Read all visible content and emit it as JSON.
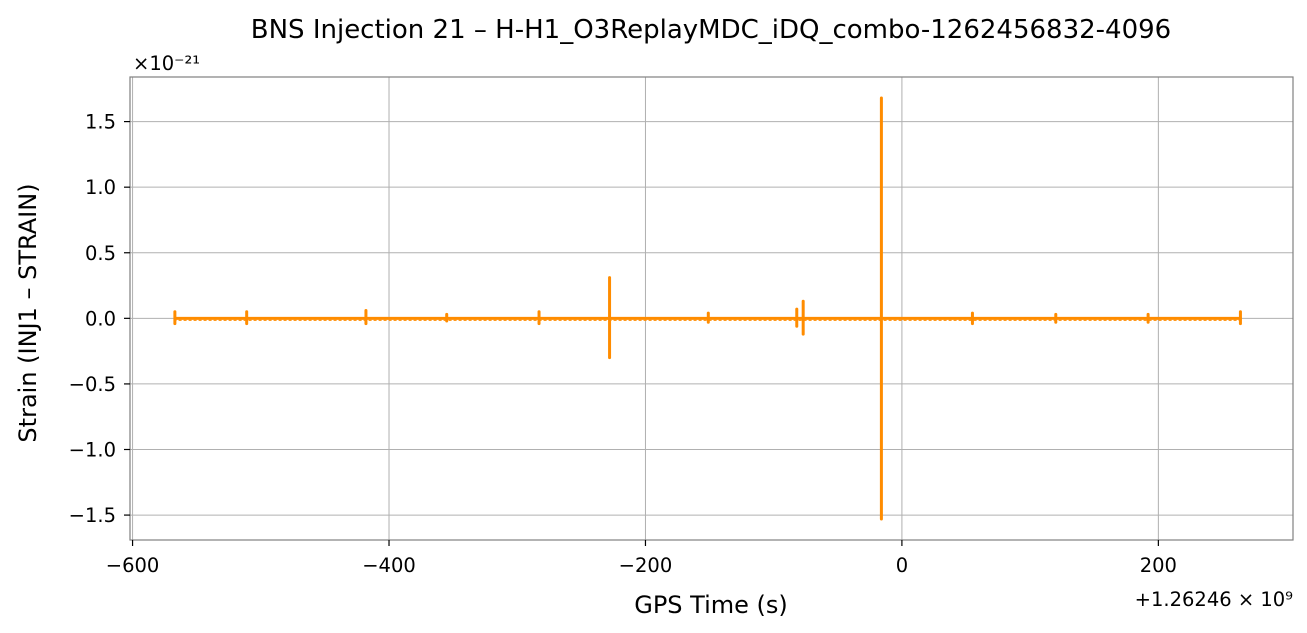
{
  "chart_data": {
    "type": "line",
    "title": "BNS Injection 21 – H-H1_O3ReplayMDC_iDQ_combo-1262456832-4096",
    "xlabel": "GPS Time (s)",
    "ylabel": "Strain (INJ1 – STRAIN)",
    "x_offset_label": "+1.26246 × 10⁹",
    "y_scale_label": "×10⁻²¹",
    "xlim": [
      -602,
      305
    ],
    "ylim": [
      -1.69,
      1.84
    ],
    "xticks": [
      -600,
      -400,
      -200,
      0,
      200
    ],
    "xtick_labels": [
      "−600",
      "−400",
      "−200",
      "0",
      "200"
    ],
    "yticks": [
      -1.5,
      -1.0,
      -0.5,
      0.0,
      0.5,
      1.0,
      1.5
    ],
    "ytick_labels": [
      "−1.5",
      "−1.0",
      "−0.5",
      "0.0",
      "0.5",
      "1.0",
      "1.5"
    ],
    "grid": true,
    "series": [
      {
        "color": "#ff8c00",
        "baseline": [
          -568,
          265
        ],
        "spikes": [
          {
            "x": -567,
            "max": 0.05,
            "min": -0.04
          },
          {
            "x": -511,
            "max": 0.05,
            "min": -0.04
          },
          {
            "x": -418,
            "max": 0.06,
            "min": -0.04
          },
          {
            "x": -355,
            "max": 0.03,
            "min": -0.02
          },
          {
            "x": -283,
            "max": 0.05,
            "min": -0.04
          },
          {
            "x": -228,
            "max": 0.31,
            "min": -0.3
          },
          {
            "x": -151,
            "max": 0.04,
            "min": -0.03
          },
          {
            "x": -82,
            "max": 0.07,
            "min": -0.06
          },
          {
            "x": -77,
            "max": 0.13,
            "min": -0.12
          },
          {
            "x": -16,
            "max": 1.68,
            "min": -1.53
          },
          {
            "x": 55,
            "max": 0.04,
            "min": -0.04
          },
          {
            "x": 120,
            "max": 0.03,
            "min": -0.03
          },
          {
            "x": 192,
            "max": 0.03,
            "min": -0.03
          },
          {
            "x": 264,
            "max": 0.05,
            "min": -0.04
          }
        ]
      }
    ]
  }
}
